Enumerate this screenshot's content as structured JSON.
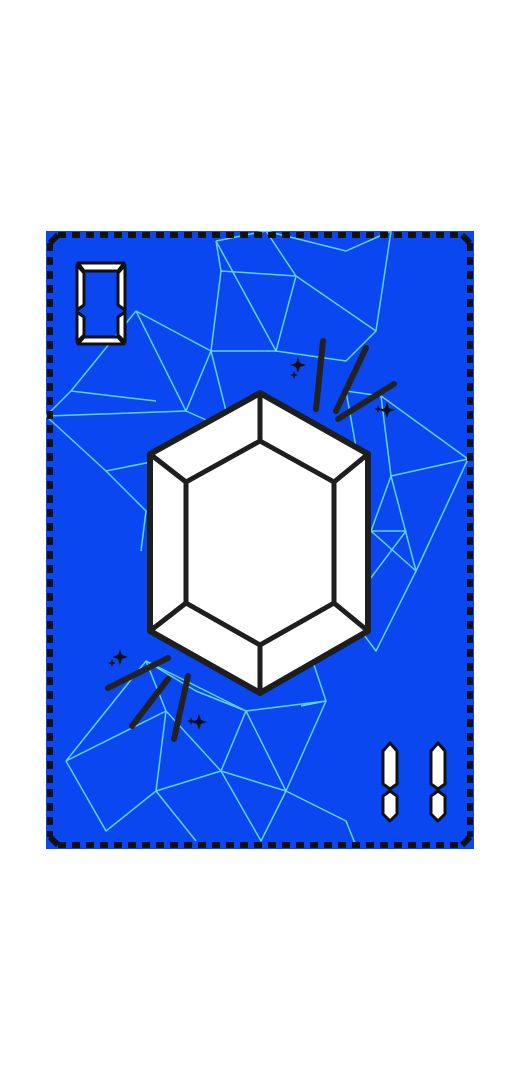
{
  "card": {
    "top_left_value": "0",
    "bottom_right_value": "11",
    "background_color": "#0a47f0",
    "pattern_color": "#5fd3e0",
    "border_color": "#111111",
    "gem_fill": "#ffffff",
    "gem_outline": "#1e1e1e",
    "icon": "gem-icon"
  }
}
